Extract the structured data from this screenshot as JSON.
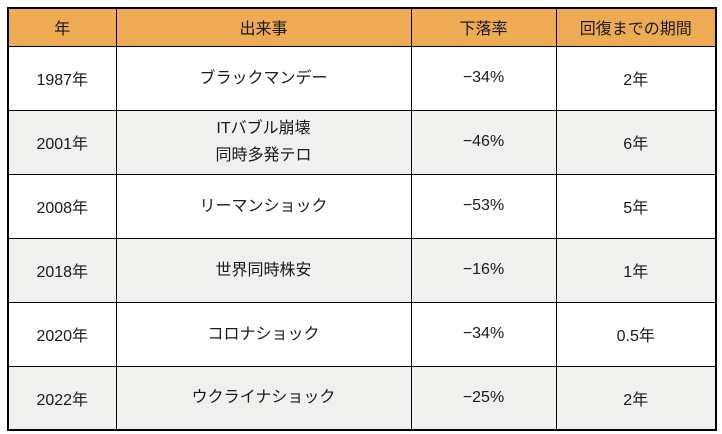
{
  "colors": {
    "page_bg": "#FFFFFF",
    "header_bg": "#EFAB53",
    "alt_row_bg": "#F0F0EF",
    "border": "#000000",
    "text": "#1A1A1A"
  },
  "table": {
    "columns": [
      {
        "label": "年"
      },
      {
        "label": "出来事"
      },
      {
        "label": "下落率"
      },
      {
        "label": "回復までの期間"
      }
    ],
    "rows": [
      {
        "year": "1987年",
        "event": "ブラックマンデー",
        "event_line2": "",
        "decline": "−34%",
        "recovery": "2年"
      },
      {
        "year": "2001年",
        "event": "ITバブル崩壊",
        "event_line2": "同時多発テロ",
        "decline": "−46%",
        "recovery": "6年"
      },
      {
        "year": "2008年",
        "event": "リーマンショック",
        "event_line2": "",
        "decline": "−53%",
        "recovery": "5年"
      },
      {
        "year": "2018年",
        "event": "世界同時株安",
        "event_line2": "",
        "decline": "−16%",
        "recovery": "1年"
      },
      {
        "year": "2020年",
        "event": "コロナショック",
        "event_line2": "",
        "decline": "−34%",
        "recovery": "0.5年"
      },
      {
        "year": "2022年",
        "event": "ウクライナショック",
        "event_line2": "",
        "decline": "−25%",
        "recovery": "2年"
      }
    ]
  },
  "chart_data": {
    "type": "table",
    "title": "",
    "columns": [
      "年",
      "出来事",
      "下落率",
      "回復までの期間"
    ],
    "rows": [
      [
        "1987年",
        "ブラックマンデー",
        "−34%",
        "2年"
      ],
      [
        "2001年",
        "ITバブル崩壊 同時多発テロ",
        "−46%",
        "6年"
      ],
      [
        "2008年",
        "リーマンショック",
        "−53%",
        "5年"
      ],
      [
        "2018年",
        "世界同時株安",
        "−16%",
        "1年"
      ],
      [
        "2020年",
        "コロナショック",
        "−34%",
        "0.5年"
      ],
      [
        "2022年",
        "ウクライナショック",
        "−25%",
        "2年"
      ]
    ],
    "decline_pct_values": [
      -34,
      -46,
      -53,
      -16,
      -34,
      -25
    ],
    "recovery_years_values": [
      2,
      6,
      5,
      1,
      0.5,
      2
    ]
  }
}
